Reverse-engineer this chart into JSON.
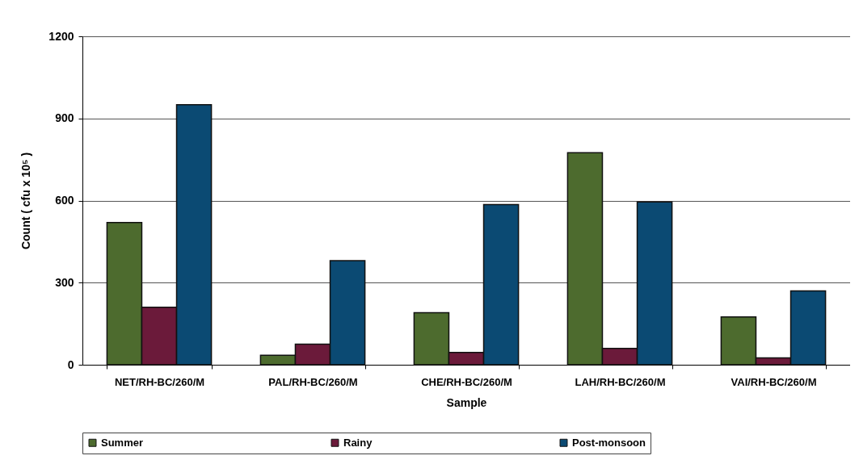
{
  "chart_data": {
    "type": "bar",
    "xlabel": "Sample",
    "ylabel": "Count ( cfu x 10⁵ )",
    "categories": [
      "NET/RH-BC/260/M",
      "PAL/RH-BC/260/M",
      "CHE/RH-BC/260/M",
      "LAH/RH-BC/260/M",
      "VAI/RH-BC/260/M"
    ],
    "series": [
      {
        "name": "Summer",
        "color": "#4d6b2e",
        "values": [
          520,
          35,
          190,
          775,
          175
        ]
      },
      {
        "name": "Rainy",
        "color": "#6b1a3a",
        "values": [
          210,
          75,
          45,
          60,
          25
        ]
      },
      {
        "name": "Post-monsoon",
        "color": "#0b4a73",
        "values": [
          950,
          380,
          585,
          595,
          270
        ]
      }
    ],
    "ylim": [
      0,
      1200
    ],
    "yticks": [
      0,
      300,
      600,
      900,
      1200
    ],
    "grid": "y",
    "legend": "bottom"
  }
}
